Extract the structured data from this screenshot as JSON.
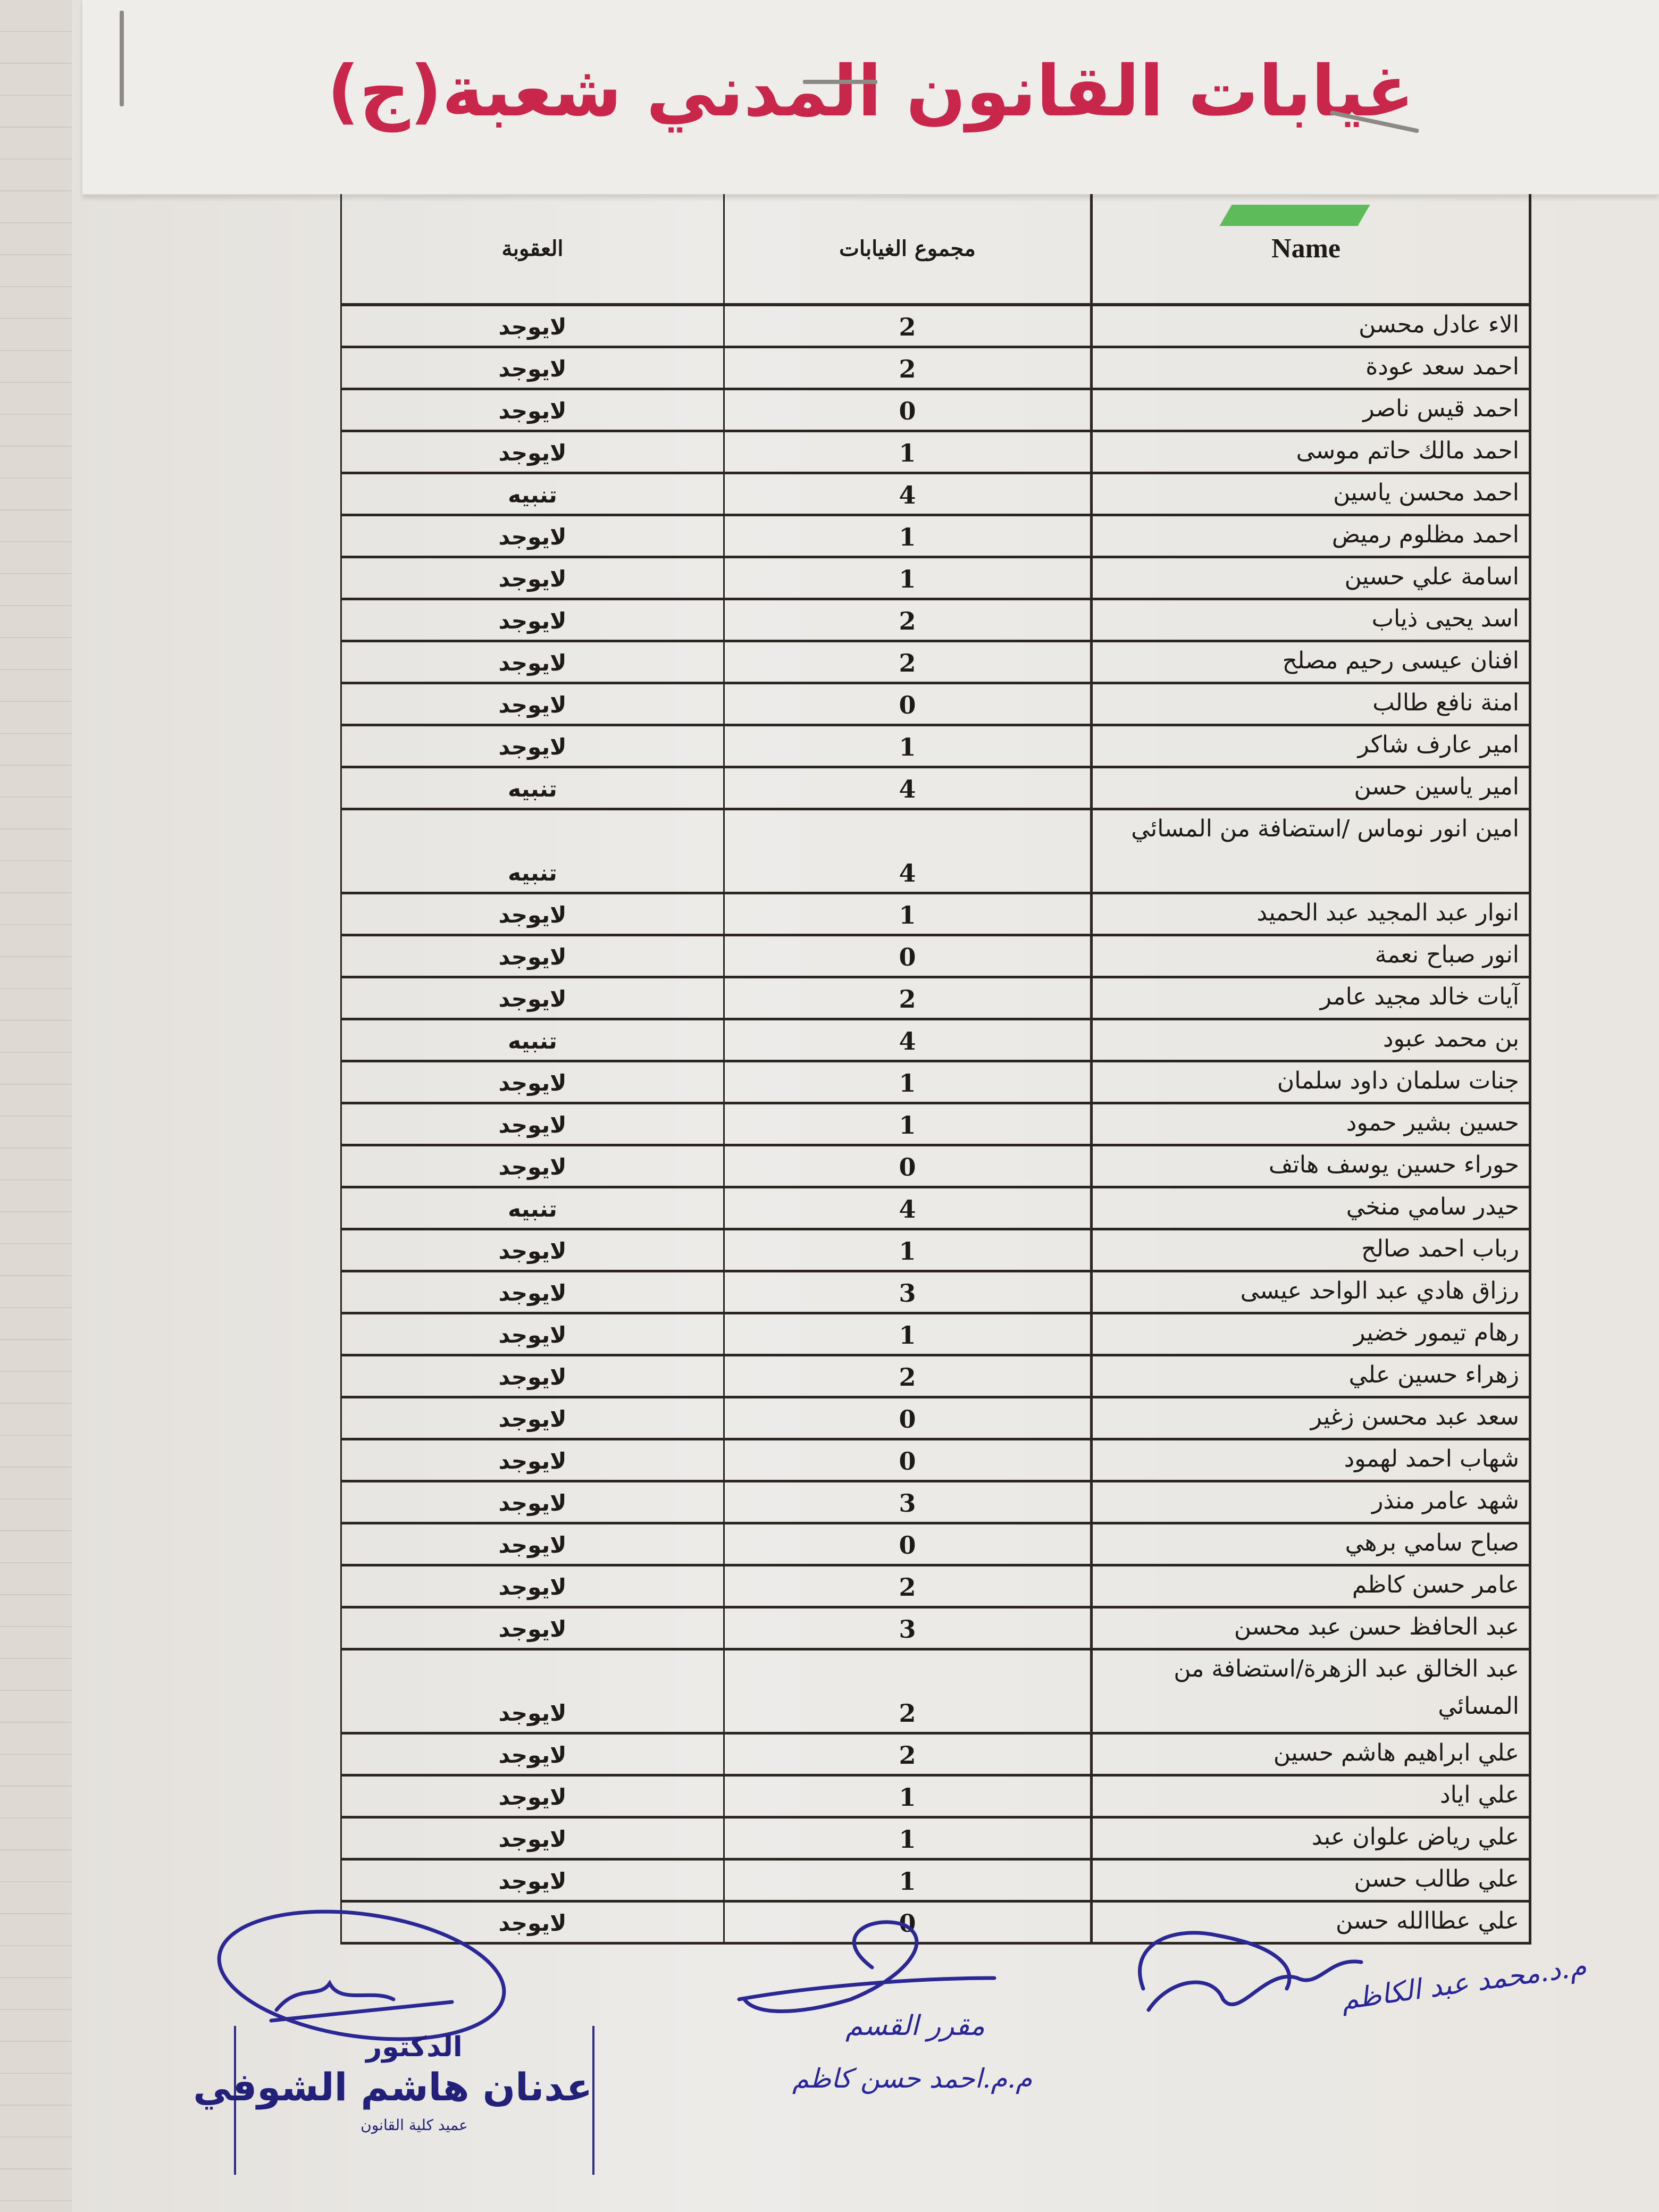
{
  "document": {
    "title": "غيابات القانون المدني شعبة(ج)",
    "title_color": "#c8264a"
  },
  "table": {
    "headers": {
      "name": "Name",
      "absences": "مجموع الغيابات",
      "penalty": "العقوبة"
    },
    "rows": [
      {
        "name": "الاء عادل محسن",
        "absences": "2",
        "penalty": "لايوجد"
      },
      {
        "name": "احمد سعد عودة",
        "absences": "2",
        "penalty": "لايوجد"
      },
      {
        "name": "احمد قيس ناصر",
        "absences": "0",
        "penalty": "لايوجد"
      },
      {
        "name": "احمد مالك حاتم موسى",
        "absences": "1",
        "penalty": "لايوجد"
      },
      {
        "name": "احمد محسن ياسين",
        "absences": "4",
        "penalty": "تنبيه"
      },
      {
        "name": "احمد مظلوم رميض",
        "absences": "1",
        "penalty": "لايوجد"
      },
      {
        "name": "اسامة علي حسين",
        "absences": "1",
        "penalty": "لايوجد"
      },
      {
        "name": "اسد يحيى ذياب",
        "absences": "2",
        "penalty": "لايوجد"
      },
      {
        "name": "افنان عيسى رحيم مصلح",
        "absences": "2",
        "penalty": "لايوجد"
      },
      {
        "name": "امنة نافع طالب",
        "absences": "0",
        "penalty": "لايوجد"
      },
      {
        "name": "امير عارف شاكر",
        "absences": "1",
        "penalty": "لايوجد"
      },
      {
        "name": "امير ياسين حسن",
        "absences": "4",
        "penalty": "تنبيه"
      },
      {
        "name": "امين انور نوماس /استضافة من المسائي",
        "absences": "4",
        "penalty": "تنبيه"
      },
      {
        "name": "انوار عبد المجيد عبد الحميد",
        "absences": "1",
        "penalty": "لايوجد"
      },
      {
        "name": "انور صباح نعمة",
        "absences": "0",
        "penalty": "لايوجد"
      },
      {
        "name": "آيات خالد مجيد عامر",
        "absences": "2",
        "penalty": "لايوجد"
      },
      {
        "name": "بن محمد عبود",
        "absences": "4",
        "penalty": "تنبيه"
      },
      {
        "name": "جنات سلمان داود سلمان",
        "absences": "1",
        "penalty": "لايوجد"
      },
      {
        "name": "حسين بشير حمود",
        "absences": "1",
        "penalty": "لايوجد"
      },
      {
        "name": "حوراء حسين يوسف هاتف",
        "absences": "0",
        "penalty": "لايوجد"
      },
      {
        "name": "حيدر سامي منخي",
        "absences": "4",
        "penalty": "تنبيه"
      },
      {
        "name": "رباب احمد صالح",
        "absences": "1",
        "penalty": "لايوجد"
      },
      {
        "name": "رزاق هادي عبد الواحد عيسى",
        "absences": "3",
        "penalty": "لايوجد"
      },
      {
        "name": "رهام تيمور خضير",
        "absences": "1",
        "penalty": "لايوجد"
      },
      {
        "name": "زهراء حسين علي",
        "absences": "2",
        "penalty": "لايوجد"
      },
      {
        "name": "سعد عبد محسن زغير",
        "absences": "0",
        "penalty": "لايوجد"
      },
      {
        "name": "شهاب احمد لهمود",
        "absences": "0",
        "penalty": "لايوجد"
      },
      {
        "name": "شهد عامر منذر",
        "absences": "3",
        "penalty": "لايوجد"
      },
      {
        "name": "صباح سامي برهي",
        "absences": "0",
        "penalty": "لايوجد"
      },
      {
        "name": "عامر حسن كاظم",
        "absences": "2",
        "penalty": "لايوجد"
      },
      {
        "name": "عبد الحافظ حسن عبد محسن",
        "absences": "3",
        "penalty": "لايوجد"
      },
      {
        "name": "عبد الخالق عبد الزهرة/استضافة من المسائي",
        "absences": "2",
        "penalty": "لايوجد"
      },
      {
        "name": "علي ابراهيم هاشم حسين",
        "absences": "2",
        "penalty": "لايوجد"
      },
      {
        "name": "علي اياد",
        "absences": "1",
        "penalty": "لايوجد"
      },
      {
        "name": "علي رياض علوان عبد",
        "absences": "1",
        "penalty": "لايوجد"
      },
      {
        "name": "علي طالب حسن",
        "absences": "1",
        "penalty": "لايوجد"
      },
      {
        "name": "علي عطاالله حسن",
        "absences": "0",
        "penalty": "لايوجد"
      }
    ]
  },
  "stamp": {
    "line1": "الدكتور",
    "line2": "عدنان هاشم الشوفي",
    "line3": "عميد كلية القانون"
  },
  "handwriting": {
    "middle_title": "مقرر القسم",
    "middle_name": "م.م.احمد حسن كاظم",
    "right_name": "م.د.محمد عبد الكاظم"
  },
  "colors": {
    "ink": "#28259a",
    "table_lines": "#2b2622",
    "paper": "#eceae6"
  }
}
